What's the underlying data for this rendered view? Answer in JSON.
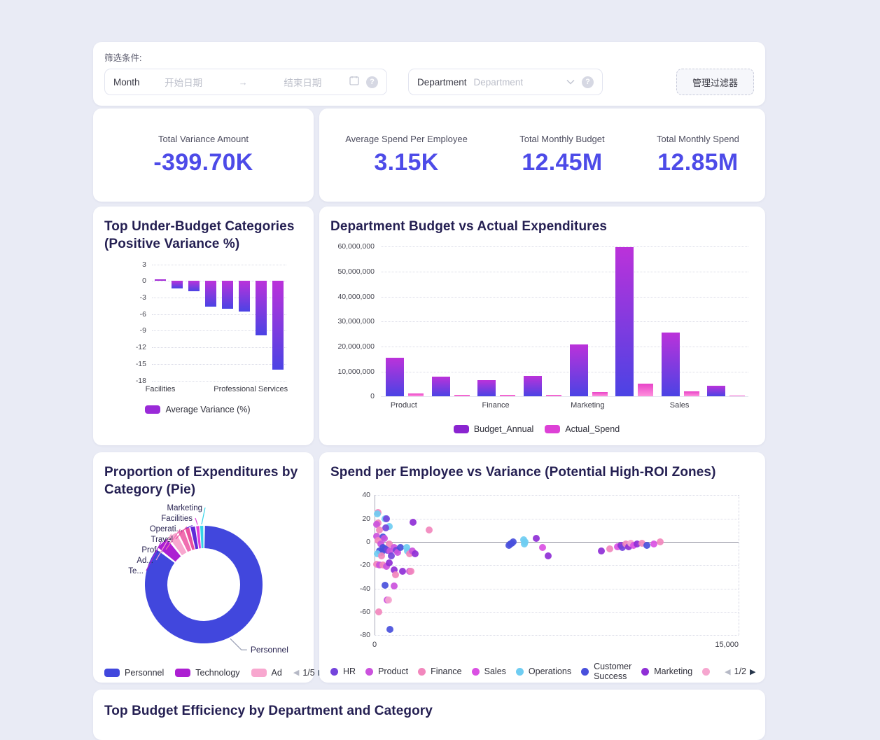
{
  "filter_bar": {
    "section_label": "筛选条件:",
    "month_label": "Month",
    "start_placeholder": "开始日期",
    "range_arrow": "→",
    "end_placeholder": "结束日期",
    "department_label": "Department",
    "department_placeholder": "Department",
    "manage_filters_button": "管理过滤器",
    "help_icon_glyph": "?"
  },
  "kpis": {
    "variance": {
      "label": "Total Variance Amount",
      "value": "-399.70K"
    },
    "avg_spend": {
      "label": "Average Spend Per Employee",
      "value": "3.15K"
    },
    "budget": {
      "label": "Total Monthly Budget",
      "value": "12.45M"
    },
    "spend": {
      "label": "Total Monthly Spend",
      "value": "12.85M"
    }
  },
  "bottom_card": {
    "title": "Top Budget Efficiency by Department and Category"
  },
  "colors": {
    "background": "#e9ebf5",
    "card": "#ffffff",
    "title_text": "#241f52",
    "kpi_value": "#4d4be8"
  },
  "chart_data": [
    {
      "id": "under_budget",
      "type": "bar",
      "title": "Top Under-Budget Categories (Positive Variance %)",
      "categories": [
        "Facilities",
        "",
        "",
        "",
        "",
        "",
        "Professional Services",
        ""
      ],
      "values": [
        0.3,
        -1.3,
        -1.9,
        -4.6,
        -5.0,
        -5.5,
        -9.8,
        -16.0
      ],
      "ylim": [
        3,
        -18
      ],
      "y_ticks": [
        3,
        0,
        -3,
        -6,
        -9,
        -12,
        -15,
        -18
      ],
      "grid": "dotted",
      "bar_gradient": [
        "#bb32da",
        "#4b43e4"
      ],
      "positive_bar_color": "#a32ad6",
      "legend": {
        "items": [
          {
            "label": "Average Variance (%)",
            "color": "#9a2ad8"
          }
        ]
      }
    },
    {
      "id": "budget_vs_actual",
      "type": "bar",
      "title": "Department Budget vs Actual Expenditures",
      "categories": [
        "Product",
        "",
        "Finance",
        "",
        "Marketing",
        "",
        "Sales",
        ""
      ],
      "series": [
        {
          "name": "Budget_Annual",
          "values": [
            15500000,
            7900000,
            6400000,
            8200000,
            20700000,
            59800000,
            25500000,
            4300000
          ],
          "gradient": [
            "#bb32da",
            "#4b43e4"
          ],
          "swatch": "#8a24d0"
        },
        {
          "name": "Actual_Spend",
          "values": [
            1200000,
            700000,
            500000,
            600000,
            1800000,
            5000000,
            2100000,
            400000
          ],
          "gradient": [
            "#e843c8",
            "#ff90dc"
          ],
          "swatch": "#dd41d6"
        }
      ],
      "ylim": [
        0,
        60000000
      ],
      "y_tick_labels": [
        "60,000,000",
        "50,000,000",
        "40,000,000",
        "30,000,000",
        "20,000,000",
        "10,000,000",
        "0"
      ],
      "grid": "dotted",
      "legend": {
        "items": [
          {
            "label": "Budget_Annual",
            "color": "#8a24d0"
          },
          {
            "label": "Actual_Spend",
            "color": "#dd41d6"
          }
        ]
      }
    },
    {
      "id": "expenditure_pie",
      "type": "pie",
      "title": "Proportion of Expenditures by Category (Pie)",
      "slices": [
        {
          "label": "Personnel",
          "callout": "Personnel",
          "pct": 85.5,
          "color": "#4147dd"
        },
        {
          "label": "Technology",
          "callout": "Te...",
          "pct": 4.0,
          "color": "#ac1fd2"
        },
        {
          "label": "Ad",
          "callout": "Ad...",
          "pct": 3.0,
          "color": "#f8a7cf"
        },
        {
          "label": "Professional Services",
          "callout": "Prof...",
          "pct": 2.2,
          "color": "#f06eb0"
        },
        {
          "label": "Travel",
          "callout": "Travel",
          "pct": 1.5,
          "color": "#ea4f9f"
        },
        {
          "label": "Operations",
          "callout": "Operati...",
          "pct": 1.6,
          "color": "#5f2bd8"
        },
        {
          "label": "Facilities",
          "callout": "Facilities",
          "pct": 1.1,
          "color": "#e23ed9"
        },
        {
          "label": "Marketing",
          "callout": "Marketing",
          "pct": 1.1,
          "color": "#35d3e8"
        }
      ],
      "legend": {
        "items": [
          {
            "label": "Personnel",
            "color": "#4147dd"
          },
          {
            "label": "Technology",
            "color": "#ac1fd2"
          },
          {
            "label": "Ad",
            "color": "#f8a7cf"
          }
        ],
        "pagination": "1/5"
      }
    },
    {
      "id": "spend_scatter",
      "type": "scatter",
      "title": "Spend per Employee vs Variance (Potential High-ROI Zones)",
      "xlim": [
        0,
        15000
      ],
      "ylim": [
        40,
        -80
      ],
      "y_ticks": [
        40,
        20,
        0,
        -20,
        -40,
        -60,
        -80
      ],
      "x_tick_labels": [
        "0",
        "15,000"
      ],
      "series": [
        {
          "name": "HR",
          "color": "#7444dc"
        },
        {
          "name": "Product",
          "color": "#cb52dd"
        },
        {
          "name": "Finance",
          "color": "#f287bd"
        },
        {
          "name": "Sales",
          "color": "#da50e3"
        },
        {
          "name": "Operations",
          "color": "#6fcdf2"
        },
        {
          "name": "Customer Success",
          "color": "#4950dc"
        },
        {
          "name": "Marketing",
          "color": "#8f2fd6"
        },
        {
          "name": "",
          "color": "#f6a6cf"
        }
      ],
      "points": [
        [
          150,
          25,
          2
        ],
        [
          110,
          24,
          4
        ],
        [
          420,
          20,
          4
        ],
        [
          490,
          20,
          0
        ],
        [
          150,
          16,
          2
        ],
        [
          100,
          15,
          1
        ],
        [
          610,
          13,
          4
        ],
        [
          450,
          12,
          0
        ],
        [
          200,
          10,
          2
        ],
        [
          1600,
          17,
          6
        ],
        [
          2250,
          10,
          2
        ],
        [
          100,
          5,
          1
        ],
        [
          350,
          4,
          5
        ],
        [
          400,
          3,
          1
        ],
        [
          150,
          1,
          2
        ],
        [
          250,
          -2,
          1
        ],
        [
          610,
          -2,
          2
        ],
        [
          350,
          -5,
          5
        ],
        [
          430,
          -6,
          5
        ],
        [
          510,
          -7,
          0
        ],
        [
          200,
          -8,
          5
        ],
        [
          300,
          -9,
          5
        ],
        [
          630,
          -8,
          1
        ],
        [
          810,
          -5,
          1
        ],
        [
          900,
          -7,
          0
        ],
        [
          960,
          -9,
          1
        ],
        [
          120,
          -10,
          4
        ],
        [
          280,
          -12,
          2
        ],
        [
          700,
          -12,
          0
        ],
        [
          1060,
          -5,
          5
        ],
        [
          1340,
          -5,
          4
        ],
        [
          1360,
          -8,
          4
        ],
        [
          1430,
          -10,
          2
        ],
        [
          1560,
          -8,
          1
        ],
        [
          1660,
          -10,
          6
        ],
        [
          100,
          -19,
          2
        ],
        [
          200,
          -20,
          1
        ],
        [
          360,
          -20,
          2
        ],
        [
          500,
          -21,
          1
        ],
        [
          610,
          -18,
          6
        ],
        [
          810,
          -24,
          6
        ],
        [
          860,
          -28,
          2
        ],
        [
          1160,
          -25,
          6
        ],
        [
          1450,
          -25,
          1
        ],
        [
          1510,
          -25,
          2
        ],
        [
          820,
          -38,
          1
        ],
        [
          430,
          -37,
          5
        ],
        [
          510,
          -50,
          1
        ],
        [
          590,
          -50,
          7
        ],
        [
          180,
          -60,
          2
        ],
        [
          640,
          -75,
          5
        ],
        [
          5550,
          -3,
          5
        ],
        [
          5610,
          -2,
          5
        ],
        [
          5660,
          -1,
          5
        ],
        [
          5710,
          0,
          5
        ],
        [
          6150,
          2,
          4
        ],
        [
          6210,
          0,
          4
        ],
        [
          6160,
          -2,
          4
        ],
        [
          6660,
          3,
          6
        ],
        [
          6910,
          -5,
          3
        ],
        [
          7160,
          -12,
          6
        ],
        [
          9360,
          -8,
          6
        ],
        [
          9700,
          -6,
          2
        ],
        [
          10000,
          -4,
          3
        ],
        [
          10150,
          -3,
          6
        ],
        [
          10210,
          -5,
          0
        ],
        [
          10360,
          -2,
          2
        ],
        [
          10460,
          -4,
          6
        ],
        [
          10560,
          -1,
          7
        ],
        [
          10660,
          -3,
          3
        ],
        [
          10810,
          -2,
          6
        ],
        [
          11010,
          -1,
          2
        ],
        [
          11210,
          -3,
          5
        ],
        [
          11510,
          -2,
          3
        ],
        [
          11760,
          0,
          2
        ]
      ],
      "legend": {
        "pagination": "1/2"
      }
    }
  ]
}
